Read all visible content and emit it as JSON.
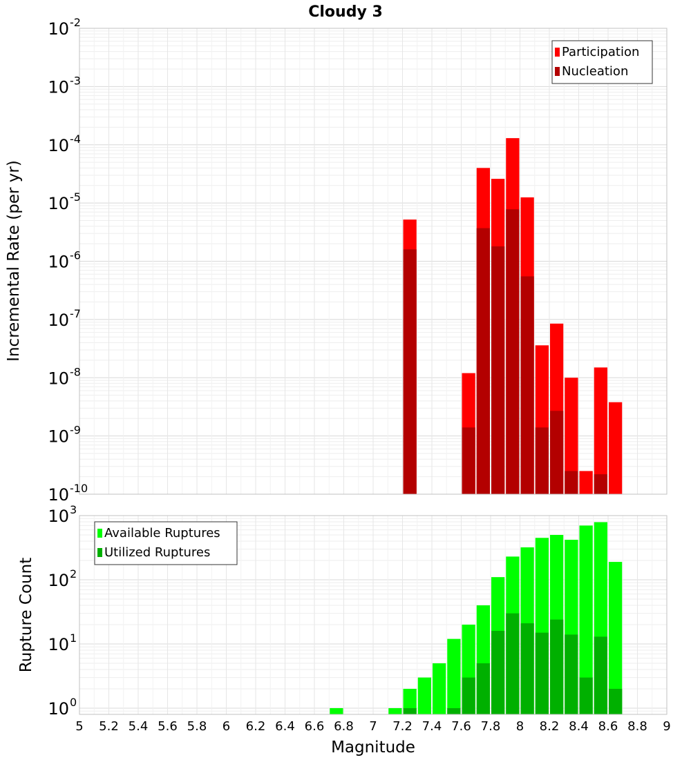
{
  "title": "Cloudy 3",
  "chart_data": [
    {
      "type": "bar",
      "ylabel": "Incremental Rate (per yr)",
      "yscale": "log",
      "ylim": [
        1e-10,
        0.01
      ],
      "xlim": [
        5,
        9
      ],
      "legend_position": "top-right",
      "grid": true,
      "y_tick_labels": [
        {
          "base": "10",
          "exp": "-2"
        },
        {
          "base": "10",
          "exp": "-3"
        },
        {
          "base": "10",
          "exp": "-4"
        },
        {
          "base": "10",
          "exp": "-5"
        },
        {
          "base": "10",
          "exp": "-6"
        },
        {
          "base": "10",
          "exp": "-7"
        },
        {
          "base": "10",
          "exp": "-8"
        },
        {
          "base": "10",
          "exp": "-9"
        },
        {
          "base": "10",
          "exp": "-10"
        }
      ],
      "series": [
        {
          "name": "Participation",
          "color": "#ff0000",
          "points": [
            {
              "x": 7.25,
              "y": 5.2e-06
            },
            {
              "x": 7.65,
              "y": 1.2e-08
            },
            {
              "x": 7.75,
              "y": 4e-05
            },
            {
              "x": 7.85,
              "y": 2.6e-05
            },
            {
              "x": 7.95,
              "y": 0.00013
            },
            {
              "x": 8.05,
              "y": 1.25e-05
            },
            {
              "x": 8.15,
              "y": 3.6e-08
            },
            {
              "x": 8.25,
              "y": 8.5e-08
            },
            {
              "x": 8.35,
              "y": 1e-08
            },
            {
              "x": 8.45,
              "y": 2.5e-10
            },
            {
              "x": 8.55,
              "y": 1.5e-08
            },
            {
              "x": 8.65,
              "y": 3.8e-09
            }
          ]
        },
        {
          "name": "Nucleation",
          "color": "#b30000",
          "points": [
            {
              "x": 7.25,
              "y": 1.6e-06
            },
            {
              "x": 7.65,
              "y": 1.4e-09
            },
            {
              "x": 7.75,
              "y": 3.7e-06
            },
            {
              "x": 7.85,
              "y": 1.8e-06
            },
            {
              "x": 7.95,
              "y": 7.8e-06
            },
            {
              "x": 8.05,
              "y": 5.5e-07
            },
            {
              "x": 8.15,
              "y": 1.4e-09
            },
            {
              "x": 8.25,
              "y": 2.7e-09
            },
            {
              "x": 8.35,
              "y": 2.5e-10
            },
            {
              "x": 8.55,
              "y": 2.2e-10
            }
          ]
        }
      ]
    },
    {
      "type": "bar",
      "ylabel": "Rupture Count",
      "xlabel": "Magnitude",
      "yscale": "log",
      "ylim": [
        0.8,
        1000
      ],
      "xlim": [
        5,
        9
      ],
      "legend_position": "top-left",
      "grid": true,
      "x_tick_labels": [
        "5",
        "5.2",
        "5.4",
        "5.6",
        "5.8",
        "6",
        "6.2",
        "6.4",
        "6.6",
        "6.8",
        "7",
        "7.2",
        "7.4",
        "7.6",
        "7.8",
        "8",
        "8.2",
        "8.4",
        "8.6",
        "8.8",
        "9"
      ],
      "y_tick_labels": [
        {
          "base": "10",
          "exp": "3"
        },
        {
          "base": "10",
          "exp": "2"
        },
        {
          "base": "10",
          "exp": "1"
        },
        {
          "base": "10",
          "exp": "0"
        }
      ],
      "series": [
        {
          "name": "Available Ruptures",
          "color": "#00ff00",
          "points": [
            {
              "x": 6.75,
              "y": 1
            },
            {
              "x": 7.15,
              "y": 1
            },
            {
              "x": 7.25,
              "y": 2
            },
            {
              "x": 7.35,
              "y": 3
            },
            {
              "x": 7.45,
              "y": 5
            },
            {
              "x": 7.55,
              "y": 12
            },
            {
              "x": 7.65,
              "y": 20
            },
            {
              "x": 7.75,
              "y": 40
            },
            {
              "x": 7.85,
              "y": 110
            },
            {
              "x": 7.95,
              "y": 230
            },
            {
              "x": 8.05,
              "y": 320
            },
            {
              "x": 8.15,
              "y": 450
            },
            {
              "x": 8.25,
              "y": 500
            },
            {
              "x": 8.35,
              "y": 420
            },
            {
              "x": 8.45,
              "y": 700
            },
            {
              "x": 8.55,
              "y": 790
            },
            {
              "x": 8.65,
              "y": 190
            }
          ]
        },
        {
          "name": "Utilized Ruptures",
          "color": "#00b000",
          "points": [
            {
              "x": 7.25,
              "y": 1
            },
            {
              "x": 7.55,
              "y": 1
            },
            {
              "x": 7.65,
              "y": 3
            },
            {
              "x": 7.75,
              "y": 5
            },
            {
              "x": 7.85,
              "y": 16
            },
            {
              "x": 7.95,
              "y": 30
            },
            {
              "x": 8.05,
              "y": 21
            },
            {
              "x": 8.15,
              "y": 15
            },
            {
              "x": 8.25,
              "y": 24
            },
            {
              "x": 8.35,
              "y": 14
            },
            {
              "x": 8.45,
              "y": 3
            },
            {
              "x": 8.55,
              "y": 13
            },
            {
              "x": 8.65,
              "y": 2
            }
          ]
        }
      ]
    }
  ]
}
